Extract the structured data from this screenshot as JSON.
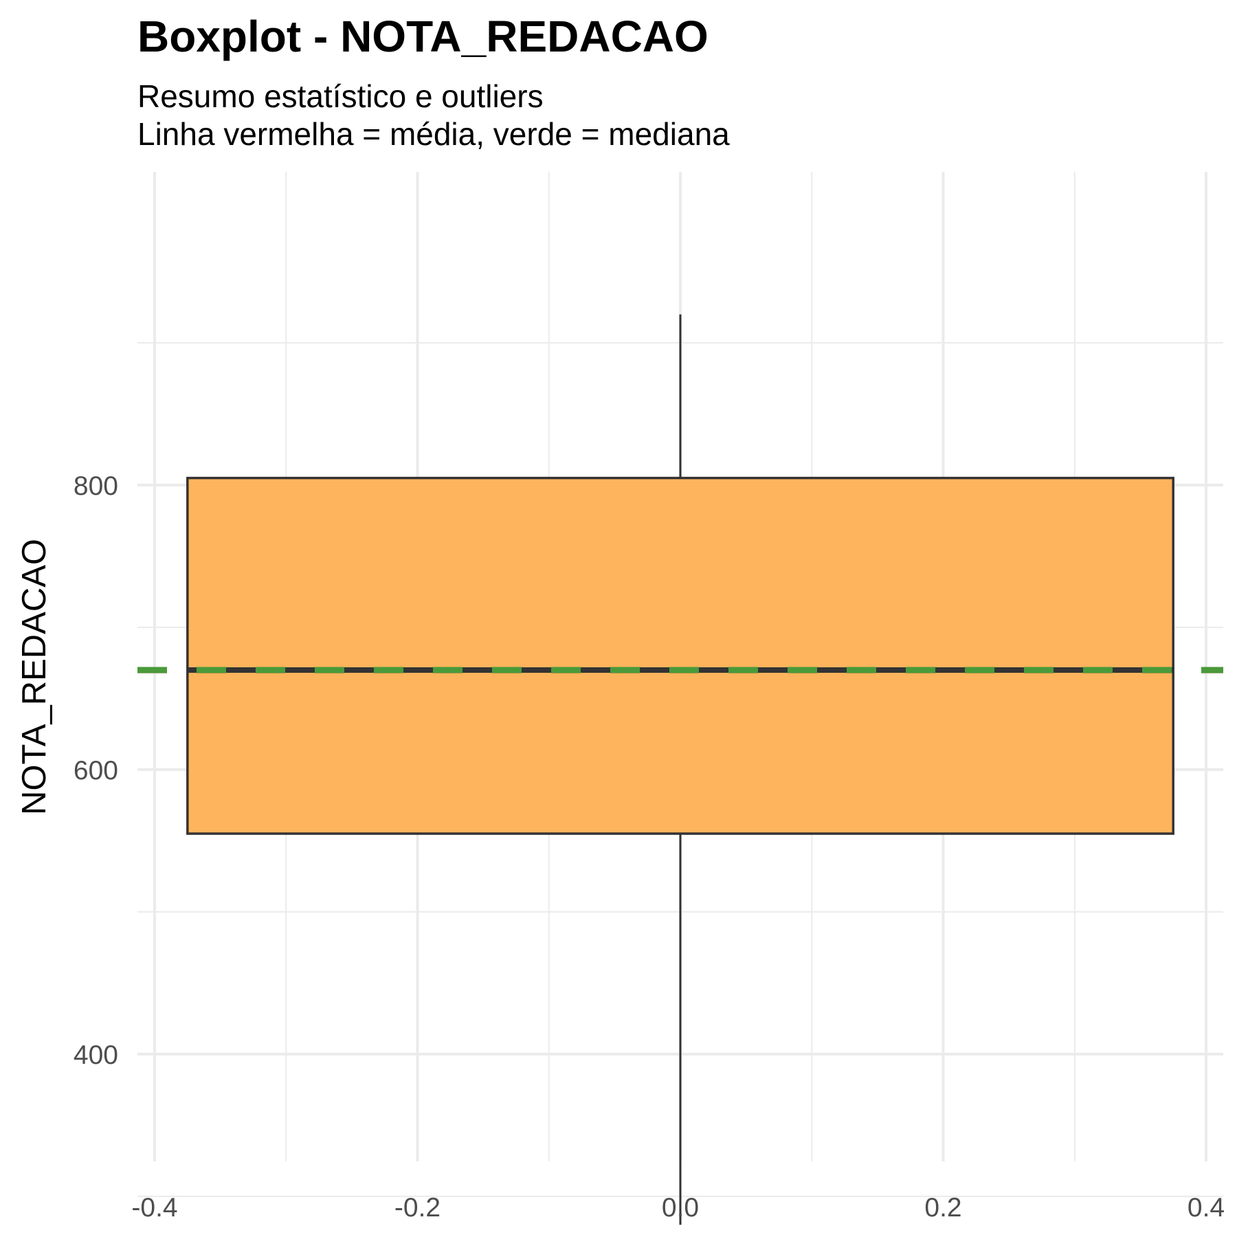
{
  "chart_data": {
    "type": "box",
    "title": "Boxplot - NOTA_REDACAO",
    "subtitle_lines": [
      "Resumo estatístico e outliers",
      "Linha vermelha = média, verde = mediana"
    ],
    "xlabel": "",
    "ylabel": "NOTA_REDACAO",
    "xlim": [
      -0.4,
      0.4
    ],
    "ylim": [
      250,
      950
    ],
    "x_ticks": [
      "-0.4",
      "-0.2",
      "0.0",
      "0.2",
      "0.4"
    ],
    "x_tick_values": [
      -0.4,
      -0.2,
      0.0,
      0.2,
      0.4
    ],
    "y_ticks": [
      "400",
      "600",
      "800"
    ],
    "y_tick_values": [
      400,
      600,
      800
    ],
    "box": {
      "x_center": 0.0,
      "x_left": -0.375,
      "x_right": 0.375,
      "whisker_min": 280,
      "q1": 555,
      "median": 670,
      "q3": 805,
      "whisker_max": 920
    },
    "mean": 669,
    "median_line": 670,
    "grid": true,
    "colors": {
      "box_fill": "#fdb45c",
      "box_stroke": "#333333",
      "mean_line": "#e8352b",
      "median_line": "#4a9a3a",
      "grid": "#ebebeb",
      "tick_text": "#4d4d4d"
    }
  }
}
